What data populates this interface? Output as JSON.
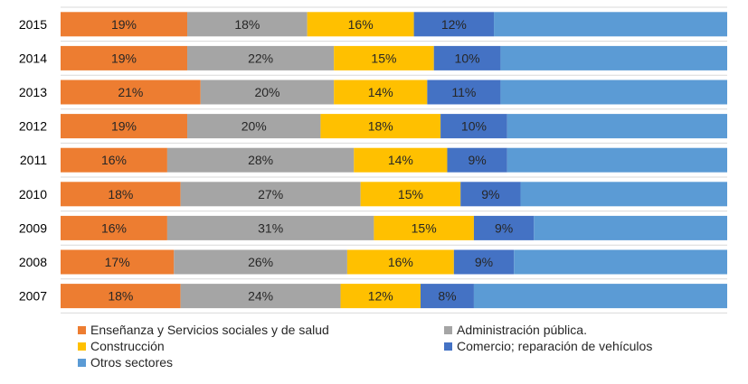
{
  "chart_data": {
    "type": "bar",
    "orientation": "horizontal",
    "stacked": "percent",
    "categories": [
      "2015",
      "2014",
      "2013",
      "2012",
      "2011",
      "2010",
      "2009",
      "2008",
      "2007"
    ],
    "series": [
      {
        "name": "Enseñanza  y Servicios sociales y de salud",
        "color": "#ED7D31",
        "values": [
          19,
          19,
          21,
          19,
          16,
          18,
          16,
          17,
          18
        ]
      },
      {
        "name": "Administración pública.",
        "color": "#A5A5A5",
        "values": [
          18,
          22,
          20,
          20,
          28,
          27,
          31,
          26,
          24
        ]
      },
      {
        "name": "Construcción",
        "color": "#FFC000",
        "values": [
          16,
          15,
          14,
          18,
          14,
          15,
          15,
          16,
          12
        ]
      },
      {
        "name": "Comercio; reparación de vehículos",
        "color": "#4472C4",
        "values": [
          12,
          10,
          11,
          10,
          9,
          9,
          9,
          9,
          8
        ]
      },
      {
        "name": "Otros sectores",
        "color": "#5B9BD5",
        "values": [
          35,
          34,
          34,
          33,
          33,
          31,
          29,
          32,
          38
        ]
      }
    ],
    "value_labels_shown_for_series": [
      0,
      1,
      2,
      3
    ],
    "xlim": [
      0,
      100
    ],
    "grid": true,
    "legend_position": "bottom"
  },
  "legend": {
    "items": [
      {
        "label": "Enseñanza  y Servicios sociales y de salud",
        "color": "#ED7D31"
      },
      {
        "label": "Administración pública.",
        "color": "#A5A5A5"
      },
      {
        "label": "Construcción",
        "color": "#FFC000"
      },
      {
        "label": "Comercio; reparación de vehículos",
        "color": "#4472C4"
      },
      {
        "label": "Otros sectores",
        "color": "#5B9BD5"
      }
    ]
  }
}
